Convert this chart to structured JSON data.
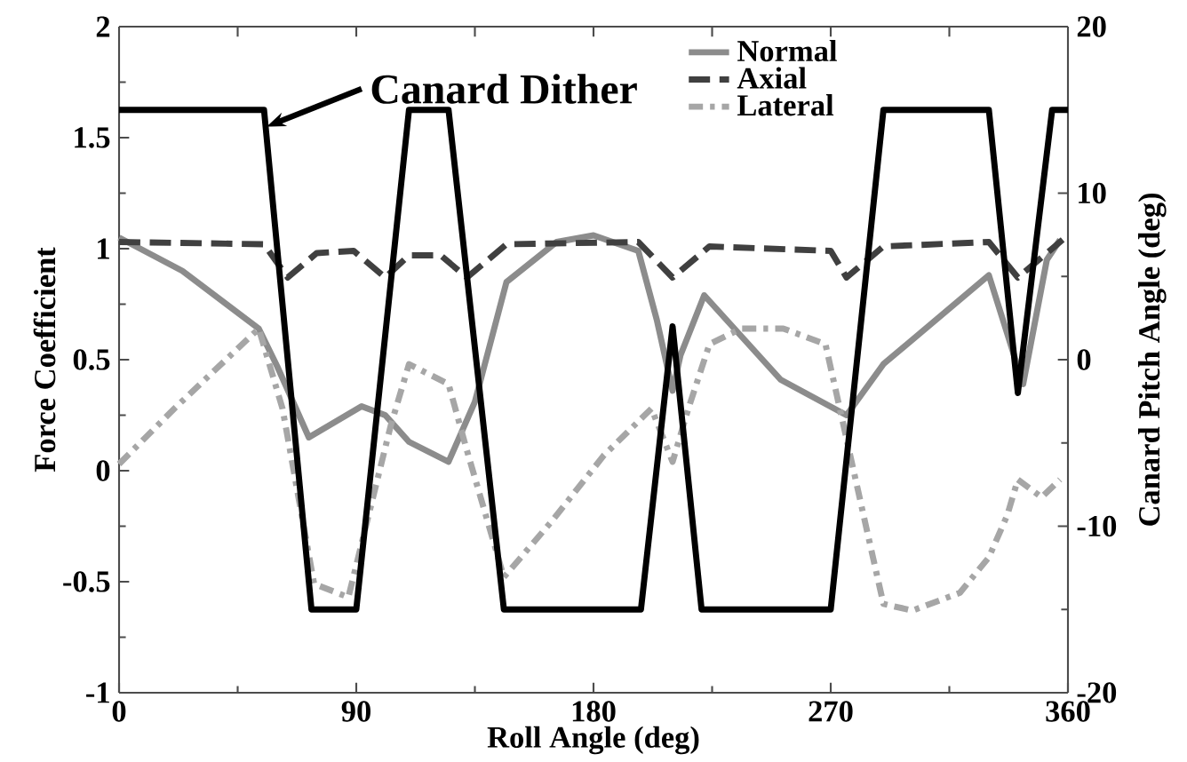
{
  "chart_data": {
    "type": "line",
    "xlabel": "Roll Angle (deg)",
    "ylabel": "Force Coefficient",
    "y2label": "Canard Pitch Angle (deg)",
    "xlim": [
      0,
      360
    ],
    "xticks": [
      0,
      90,
      180,
      270,
      360
    ],
    "ylim": [
      -1,
      2
    ],
    "yticks": [
      -1,
      -0.5,
      0,
      0.5,
      1,
      1.5,
      2
    ],
    "y2lim": [
      -20,
      20
    ],
    "y2ticks": [
      -20,
      -10,
      0,
      10,
      20
    ],
    "legend": "top right",
    "grid": false,
    "annotations": [
      {
        "text": "Canard Dither",
        "x": 56,
        "y": 1.55
      }
    ],
    "series": [
      {
        "name": "Normal",
        "color": "#8c8c8c",
        "line_style": "solid",
        "x": [
          0,
          24,
          53,
          60,
          72,
          92,
          101,
          110,
          125,
          135,
          147,
          166,
          180,
          197,
          204,
          210,
          213,
          222,
          251,
          276,
          290,
          310,
          330,
          343,
          352,
          357
        ],
        "values": [
          1.05,
          0.9,
          0.64,
          0.47,
          0.15,
          0.29,
          0.25,
          0.13,
          0.04,
          0.31,
          0.85,
          1.03,
          1.06,
          0.99,
          0.68,
          0.36,
          0.52,
          0.79,
          0.41,
          0.25,
          0.48,
          0.68,
          0.88,
          0.39,
          0.95,
          1.04
        ]
      },
      {
        "name": "Axial",
        "color": "#404040",
        "line_style": "dashed",
        "x": [
          0,
          55,
          64,
          75,
          89,
          101,
          110,
          122,
          132,
          147,
          197,
          210,
          224,
          270,
          276,
          290,
          330,
          341,
          358
        ],
        "values": [
          1.03,
          1.02,
          0.87,
          0.98,
          0.99,
          0.87,
          0.97,
          0.97,
          0.87,
          1.02,
          1.03,
          0.87,
          1.01,
          0.99,
          0.87,
          1.01,
          1.03,
          0.87,
          1.04
        ]
      },
      {
        "name": "Lateral",
        "color": "#a6a6a6",
        "line_style": "dashdot",
        "x": [
          0,
          21,
          53,
          62,
          74,
          87,
          103,
          110,
          125,
          132,
          146,
          164,
          184,
          202,
          210,
          216,
          224,
          236,
          252,
          268,
          274,
          283,
          290,
          301,
          319,
          330,
          337,
          341,
          350,
          357
        ],
        "values": [
          0.03,
          0.28,
          0.64,
          0.28,
          -0.51,
          -0.57,
          0.2,
          0.48,
          0.39,
          0.09,
          -0.48,
          -0.23,
          0.07,
          0.28,
          0.04,
          0.28,
          0.57,
          0.64,
          0.64,
          0.57,
          0.25,
          -0.23,
          -0.6,
          -0.63,
          -0.55,
          -0.39,
          -0.2,
          -0.04,
          -0.12,
          -0.04
        ]
      },
      {
        "axis": "y2",
        "color": "#000000",
        "line_style": "solid",
        "x": [
          0,
          55,
          73,
          90,
          110,
          125,
          146,
          198,
          210,
          221,
          270,
          290,
          330,
          341,
          354,
          360
        ],
        "values": [
          15,
          15,
          -15,
          -15,
          15,
          15,
          -15,
          -15,
          2,
          -15,
          -15,
          15,
          15,
          -2,
          15,
          15
        ]
      }
    ]
  }
}
